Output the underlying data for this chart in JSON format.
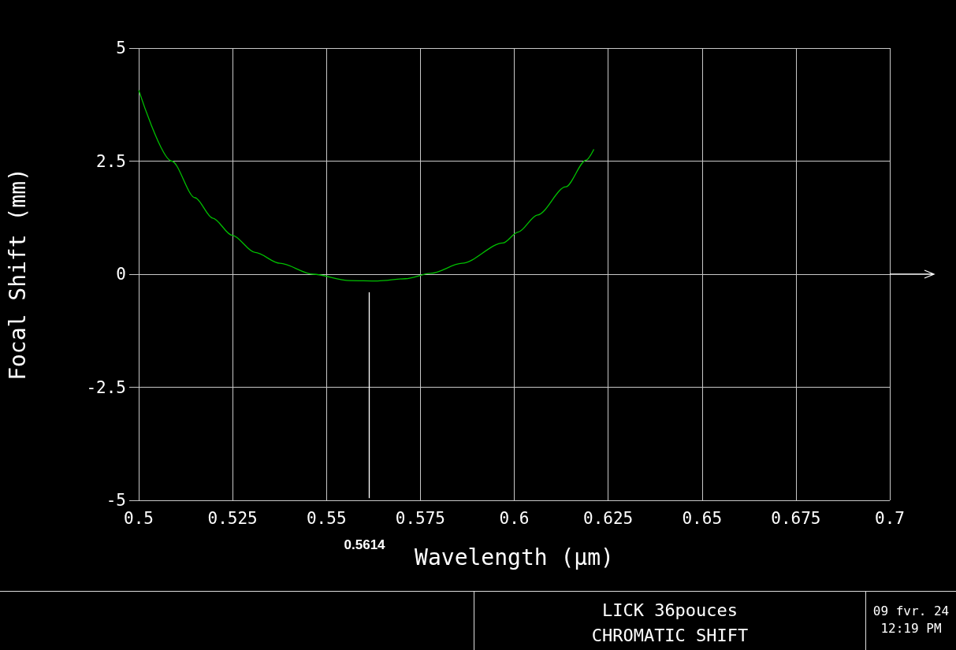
{
  "chart_data": {
    "type": "line",
    "title": "LICK 36pouces",
    "subtitle": "CHROMATIC SHIFT",
    "xlabel": "Wavelength (μm)",
    "ylabel": "Focal Shift (mm)",
    "annotations": [
      "09 fvr. 24",
      "12:19 PM"
    ],
    "x": [
      0.5,
      0.5088,
      0.515,
      0.5197,
      0.5249,
      0.531,
      0.5376,
      0.5464,
      0.5561,
      0.5636,
      0.571,
      0.5778,
      0.5861,
      0.597,
      0.601,
      0.6062,
      0.6137,
      0.6191,
      0.6212
    ],
    "series": [
      {
        "color": "#00c000",
        "values": [
          4.07,
          2.5,
          1.69,
          1.24,
          0.86,
          0.48,
          0.24,
          0,
          -0.14,
          -0.15,
          -0.1,
          0.02,
          0.24,
          0.69,
          0.93,
          1.31,
          1.93,
          2.52,
          2.76
        ]
      }
    ],
    "xlim": [
      0.5,
      0.7
    ],
    "xticks": [
      0.5,
      0.525,
      0.55,
      0.575,
      0.6,
      0.625,
      0.65,
      0.675,
      0.7
    ],
    "ylim": [
      -5,
      5
    ],
    "yticks": [
      -5,
      -2.5,
      0,
      2.5,
      5
    ],
    "ref_lines": [
      {
        "axis": "x",
        "value": 0.5614,
        "label": "0.5614",
        "color": "#ffffff"
      }
    ],
    "grid": true,
    "marker": "none",
    "line_style": "solid"
  }
}
